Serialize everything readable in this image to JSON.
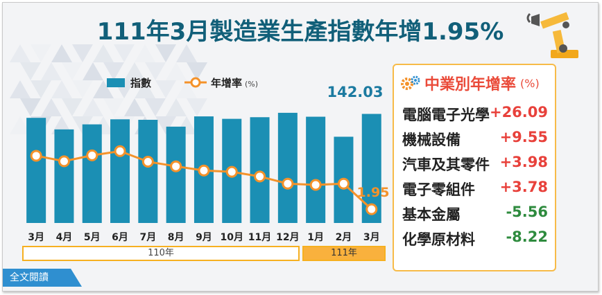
{
  "title": "111年3月製造業生產指數年增1.95%",
  "legend": {
    "bar_label": "指數",
    "line_label": "年增率",
    "line_unit": "(%)"
  },
  "colors": {
    "bar": "#1b8fb4",
    "line": "#f4922a",
    "title": "#115f79",
    "positive": "#e8413b",
    "negative": "#2e8b3e"
  },
  "chart_data": {
    "type": "bar+line",
    "categories": [
      "3月",
      "4月",
      "5月",
      "6月",
      "7月",
      "8月",
      "9月",
      "10月",
      "11月",
      "12月",
      "1月",
      "2月",
      "3月"
    ],
    "series": [
      {
        "name": "指數",
        "type": "bar",
        "values": [
          139.6,
          132.5,
          135.6,
          138.7,
          138.4,
          134.2,
          140.5,
          139.0,
          140.0,
          142.7,
          140.3,
          128.0,
          142.03
        ]
      },
      {
        "name": "年增率",
        "type": "line",
        "values": [
          14.6,
          13.3,
          14.7,
          15.7,
          13.2,
          12.1,
          11.1,
          10.8,
          9.7,
          8.0,
          7.7,
          8.0,
          1.95
        ]
      }
    ],
    "data_labels": {
      "bar_last": "142.03",
      "line_last": "1.95"
    },
    "year_groups": [
      {
        "label": "110年",
        "span": 10
      },
      {
        "label": "111年",
        "span": 3
      }
    ]
  },
  "panel": {
    "title": "中業別年增率",
    "unit": "(%)",
    "icon": "gears-icon",
    "items": [
      {
        "name": "電腦電子光學",
        "value": "+26.09",
        "sign": "positive"
      },
      {
        "name": "機械設備",
        "value": "+9.55",
        "sign": "positive"
      },
      {
        "name": "汽車及其零件",
        "value": "+3.98",
        "sign": "positive"
      },
      {
        "name": "電子零組件",
        "value": "+3.78",
        "sign": "positive"
      },
      {
        "name": "基本金屬",
        "value": "-5.56",
        "sign": "negative"
      },
      {
        "name": "化學原材料",
        "value": "-8.22",
        "sign": "negative"
      }
    ]
  },
  "read_more": "全文閱讀"
}
